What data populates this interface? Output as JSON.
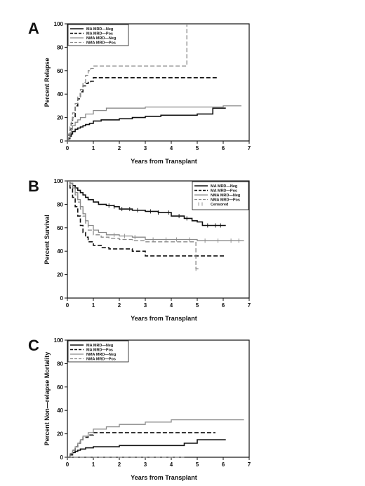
{
  "chart_data": [
    {
      "panel": "A",
      "type": "line",
      "xlabel": "Years from Transplant",
      "ylabel": "Percent Relapse",
      "xlim": [
        0,
        7
      ],
      "ylim": [
        0,
        100
      ],
      "xticks": [
        0,
        1,
        2,
        3,
        4,
        5,
        6,
        7
      ],
      "yticks": [
        0,
        20,
        40,
        60,
        80,
        100
      ],
      "legend_position": "top-left",
      "series": [
        {
          "name": "MA  MRD—Neg",
          "color": "#111111",
          "dash": "solid",
          "width": 1.6,
          "x": [
            0,
            0.05,
            0.1,
            0.15,
            0.2,
            0.3,
            0.4,
            0.5,
            0.6,
            0.7,
            0.85,
            1.0,
            1.3,
            1.6,
            2.0,
            2.5,
            3.0,
            3.6,
            4.4,
            5.0,
            5.6,
            6.1
          ],
          "y": [
            0,
            2,
            4,
            6,
            8,
            10,
            11,
            12,
            13,
            14,
            15,
            17,
            18,
            18,
            19,
            20,
            21,
            22,
            22,
            23,
            28,
            28
          ]
        },
        {
          "name": "MA  MRD—Pos",
          "color": "#111111",
          "dash": "6,3",
          "width": 1.6,
          "x": [
            0,
            0.05,
            0.1,
            0.15,
            0.2,
            0.3,
            0.4,
            0.5,
            0.6,
            0.7,
            0.8,
            0.9,
            1.0,
            1.5,
            5.8
          ],
          "y": [
            0,
            5,
            10,
            15,
            20,
            30,
            36,
            42,
            47,
            49,
            50,
            51,
            54,
            54,
            54
          ]
        },
        {
          "name": "NMA  MRD—Neg",
          "color": "#8a8a8a",
          "dash": "solid",
          "width": 1.3,
          "x": [
            0,
            0.05,
            0.1,
            0.15,
            0.2,
            0.3,
            0.4,
            0.5,
            0.7,
            1.0,
            1.5,
            2.0,
            3.0,
            4.0,
            5.0,
            6.0,
            6.7
          ],
          "y": [
            0,
            3,
            7,
            10,
            13,
            16,
            18,
            20,
            23,
            26,
            28,
            28,
            29,
            29,
            29,
            30,
            30
          ]
        },
        {
          "name": "NMA  MRD—Pos",
          "color": "#8a8a8a",
          "dash": "6,3",
          "width": 1.3,
          "x": [
            0,
            0.05,
            0.1,
            0.15,
            0.2,
            0.3,
            0.4,
            0.5,
            0.6,
            0.7,
            0.8,
            0.9,
            1.0,
            4.5,
            4.6
          ],
          "y": [
            0,
            6,
            12,
            18,
            24,
            32,
            38,
            44,
            50,
            56,
            60,
            62,
            64,
            64,
            100
          ]
        }
      ]
    },
    {
      "panel": "B",
      "type": "line",
      "xlabel": "Years from Transplant",
      "ylabel": "Percent Survival",
      "xlim": [
        0,
        7
      ],
      "ylim": [
        0,
        100
      ],
      "xticks": [
        0,
        1,
        2,
        3,
        4,
        5,
        6,
        7
      ],
      "yticks": [
        0,
        20,
        40,
        60,
        80,
        100
      ],
      "legend_position": "top-right",
      "censored_label": "Censored",
      "series": [
        {
          "name": "MA  MRD—Neg",
          "color": "#111111",
          "dash": "solid",
          "width": 1.6,
          "x": [
            0,
            0.1,
            0.2,
            0.3,
            0.4,
            0.5,
            0.6,
            0.7,
            0.8,
            1.0,
            1.2,
            1.5,
            1.8,
            2.0,
            2.5,
            3.0,
            3.5,
            4.0,
            4.5,
            4.8,
            5.0,
            5.2,
            5.6,
            6.1
          ],
          "y": [
            100,
            98,
            96,
            94,
            92,
            90,
            88,
            86,
            84,
            82,
            80,
            79,
            78,
            76,
            75,
            74,
            73,
            70,
            68,
            66,
            65,
            62,
            62,
            62
          ],
          "censored_x": [
            1.6,
            1.8,
            2.1,
            2.4,
            2.7,
            3.2,
            3.5,
            3.9,
            4.3,
            4.6,
            5.4,
            5.7,
            5.9
          ]
        },
        {
          "name": "MA  MRD—Pos",
          "color": "#111111",
          "dash": "6,3",
          "width": 1.6,
          "x": [
            0,
            0.1,
            0.2,
            0.3,
            0.4,
            0.5,
            0.6,
            0.7,
            0.8,
            1.0,
            1.3,
            1.6,
            2.0,
            2.5,
            3.0,
            4.0,
            5.0,
            6.1
          ],
          "y": [
            100,
            94,
            86,
            78,
            70,
            62,
            56,
            52,
            48,
            45,
            43,
            42,
            42,
            40,
            36,
            36,
            36,
            36
          ],
          "censored_x": []
        },
        {
          "name": "NMA  MRD—Neg",
          "color": "#8a8a8a",
          "dash": "solid",
          "width": 1.3,
          "x": [
            0,
            0.1,
            0.2,
            0.3,
            0.4,
            0.5,
            0.6,
            0.7,
            0.8,
            1.0,
            1.2,
            1.5,
            2.0,
            2.5,
            3.0,
            4.0,
            5.0,
            6.8
          ],
          "y": [
            100,
            98,
            94,
            90,
            84,
            78,
            72,
            66,
            62,
            58,
            56,
            54,
            53,
            52,
            50,
            50,
            49,
            49
          ],
          "censored_x": [
            1.8,
            2.2,
            2.6,
            3.3,
            3.8,
            4.2,
            4.7,
            5.3,
            5.8,
            6.3,
            6.6
          ]
        },
        {
          "name": "NMA  MRD—Pos",
          "color": "#8a8a8a",
          "dash": "6,3",
          "width": 1.3,
          "x": [
            0,
            0.1,
            0.2,
            0.3,
            0.4,
            0.5,
            0.6,
            0.7,
            0.8,
            1.0,
            1.3,
            1.6,
            2.0,
            2.5,
            3.0,
            4.0,
            4.9,
            4.95,
            5.1
          ],
          "y": [
            100,
            98,
            94,
            88,
            82,
            76,
            70,
            64,
            58,
            54,
            52,
            51,
            50,
            49,
            48,
            48,
            48,
            25,
            25
          ],
          "censored_x": [
            4.95
          ]
        }
      ]
    },
    {
      "panel": "C",
      "type": "line",
      "xlabel": "Years from Transplant",
      "ylabel": "Percent Non—relapse Mortality",
      "xlim": [
        0,
        7
      ],
      "ylim": [
        0,
        100
      ],
      "xticks": [
        0,
        1,
        2,
        3,
        4,
        5,
        6,
        7
      ],
      "yticks": [
        0,
        20,
        40,
        60,
        80,
        100
      ],
      "legend_position": "top-left",
      "series": [
        {
          "name": "MA  MRD—Neg",
          "color": "#111111",
          "dash": "solid",
          "width": 1.6,
          "x": [
            0,
            0.1,
            0.2,
            0.3,
            0.4,
            0.5,
            0.7,
            1.0,
            1.5,
            2.0,
            3.0,
            4.0,
            4.5,
            5.0,
            6.1
          ],
          "y": [
            0,
            2,
            4,
            5,
            6,
            7,
            8,
            9,
            9,
            10,
            10,
            10,
            12,
            15,
            15
          ]
        },
        {
          "name": "MA  MRD—Pos",
          "color": "#111111",
          "dash": "6,3",
          "width": 1.6,
          "x": [
            0,
            0.1,
            0.2,
            0.3,
            0.4,
            0.5,
            0.6,
            0.8,
            1.0,
            1.5,
            2.0,
            3.0,
            4.0,
            5.7
          ],
          "y": [
            0,
            3,
            6,
            9,
            12,
            15,
            17,
            19,
            21,
            21,
            21,
            21,
            21,
            21
          ]
        },
        {
          "name": "NMA  MRD—Neg",
          "color": "#8a8a8a",
          "dash": "solid",
          "width": 1.3,
          "x": [
            0,
            0.1,
            0.2,
            0.3,
            0.4,
            0.5,
            0.6,
            0.8,
            1.0,
            1.5,
            2.0,
            3.0,
            4.0,
            5.0,
            6.8
          ],
          "y": [
            0,
            3,
            6,
            9,
            12,
            15,
            18,
            21,
            24,
            26,
            28,
            30,
            32,
            32,
            32
          ]
        },
        {
          "name": "NMA  MRD—Pos",
          "color": "#8a8a8a",
          "dash": "6,3",
          "width": 1.3,
          "x": [
            0,
            4.5
          ],
          "y": [
            0,
            0
          ]
        }
      ]
    }
  ]
}
